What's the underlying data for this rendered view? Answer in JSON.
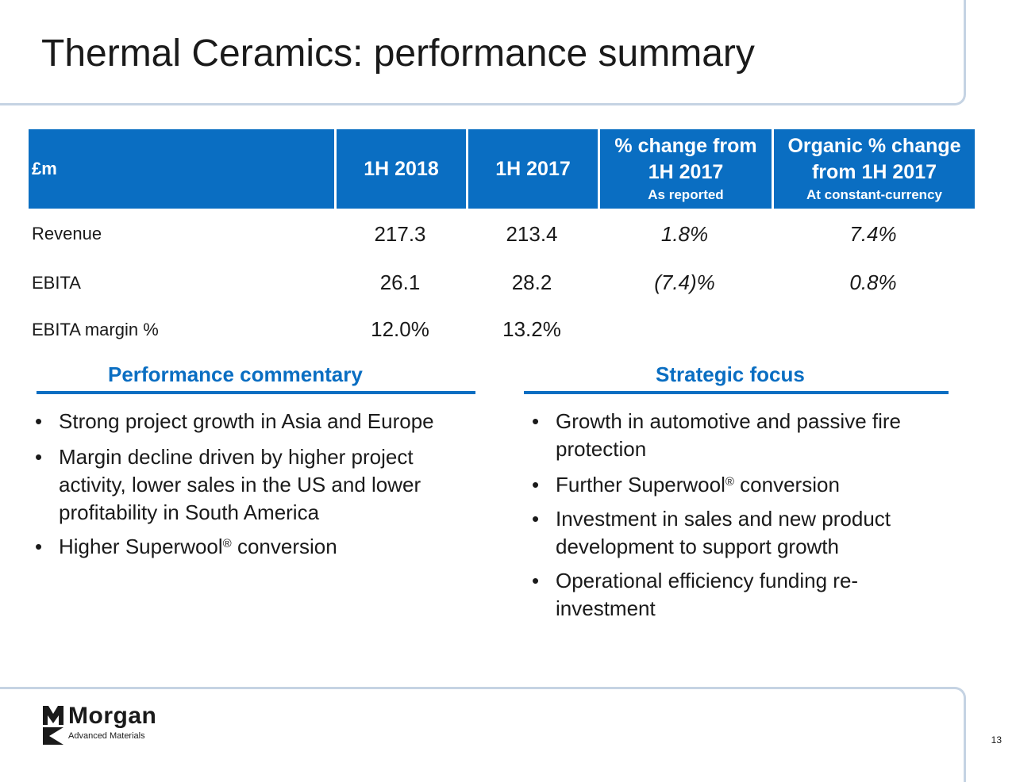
{
  "title": "Thermal Ceramics: performance summary",
  "table": {
    "headers": {
      "unit": "£m",
      "col_2018": "1H 2018",
      "col_2017": "1H 2017",
      "change_line1": "% change from",
      "change_line2": "1H 2017",
      "change_sub": "As reported",
      "organic_line1": "Organic % change",
      "organic_line2": "from 1H 2017",
      "organic_sub": "At constant-currency"
    },
    "rows": [
      {
        "label": "Revenue",
        "v2018": "217.3",
        "v2017": "213.4",
        "change": "1.8%",
        "organic": "7.4%"
      },
      {
        "label": "EBITA",
        "v2018": "26.1",
        "v2017": "28.2",
        "change": "(7.4)%",
        "organic": "0.8%"
      },
      {
        "label": "EBITA margin %",
        "v2018": "12.0%",
        "v2017": "13.2%",
        "change": "",
        "organic": ""
      }
    ]
  },
  "commentary": {
    "heading": "Performance commentary",
    "bullets": [
      "Strong project growth in Asia and Europe",
      "Margin decline driven by higher project activity, lower sales in the US and lower profitability in South America"
    ],
    "bullet3_before": "Higher Superwool",
    "bullet3_after": " conversion",
    "reg_mark": "®"
  },
  "strategic": {
    "heading": "Strategic focus",
    "bullet1": "Growth in automotive and passive fire protection",
    "bullet2_before": "Further Superwool",
    "bullet2_after": " conversion",
    "bullet3": "Investment in sales and new product development to support growth",
    "bullet4": "Operational efficiency funding re-investment",
    "reg_mark": "®"
  },
  "logo": {
    "name": "Morgan",
    "tagline": "Advanced Materials"
  },
  "page_number": "13",
  "colors": {
    "accent": "#0a6ec2",
    "frame": "#c5d3e3",
    "text": "#1a1a1a"
  }
}
